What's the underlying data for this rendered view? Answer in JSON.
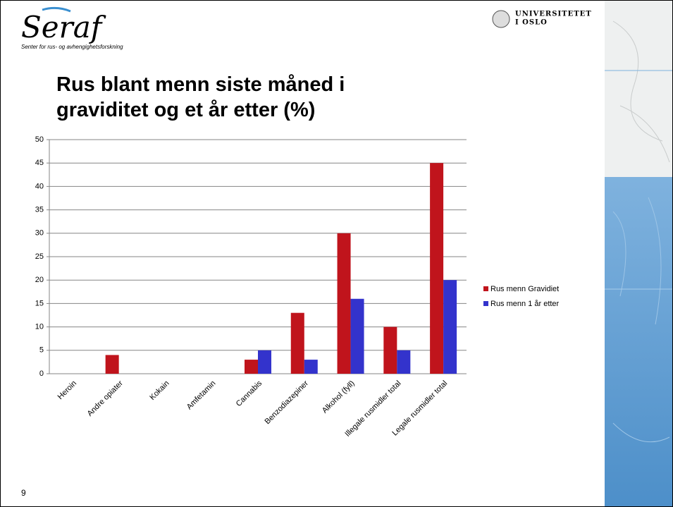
{
  "slide": {
    "logo": "Seraf",
    "logo_subtitle": "Senter for rus- og avhengighetsforskning",
    "university": [
      "UNIVERSITETET",
      "I OSLO"
    ],
    "page_number": "9"
  },
  "chart_data": {
    "type": "bar",
    "title": "Rus blant menn siste måned i graviditet og et år etter (%)",
    "categories": [
      "Heroin",
      "Andre opiater",
      "Kokain",
      "Amfetamin",
      "Cannabis",
      "Benzodiazepiner",
      "Alkohol (fyll)",
      "Illegale rusmidler total",
      "Legale rusmidler total"
    ],
    "series": [
      {
        "name": "Rus menn Gravidiet",
        "color": "#c0141c",
        "values": [
          0,
          4,
          0,
          0,
          3,
          13,
          30,
          10,
          45
        ]
      },
      {
        "name": "Rus menn 1 år etter",
        "color": "#3333cc",
        "values": [
          0,
          0,
          0,
          0,
          5,
          3,
          16,
          5,
          20
        ]
      }
    ],
    "ylim": [
      0,
      50
    ],
    "yticks": [
      0,
      5,
      10,
      15,
      20,
      25,
      30,
      35,
      40,
      45,
      50
    ],
    "grid": true,
    "legend": "right"
  }
}
